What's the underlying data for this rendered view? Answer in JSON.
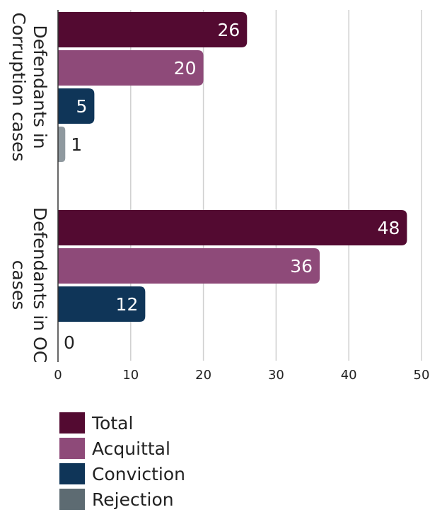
{
  "chart_data": {
    "type": "bar",
    "orientation": "horizontal",
    "categories": [
      [
        "Defendants in",
        "Corruption cases"
      ],
      [
        "Defendants in OC",
        "cases"
      ]
    ],
    "series": [
      {
        "name": "Total",
        "color": "#530a31",
        "values": [
          26,
          48
        ]
      },
      {
        "name": "Acquittal",
        "color": "#8e4a79",
        "values": [
          20,
          36
        ]
      },
      {
        "name": "Conviction",
        "color": "#0f3558",
        "values": [
          5,
          12
        ]
      },
      {
        "name": "Rejection",
        "color": "#8f999f",
        "values": [
          1,
          0
        ]
      }
    ],
    "xlim": [
      0,
      50
    ],
    "xticks": [
      0,
      10,
      20,
      30,
      40,
      50
    ],
    "grid": true,
    "legend_position": "bottom",
    "legend_swatch_colors": {
      "Rejection": "#5d6b72"
    }
  }
}
